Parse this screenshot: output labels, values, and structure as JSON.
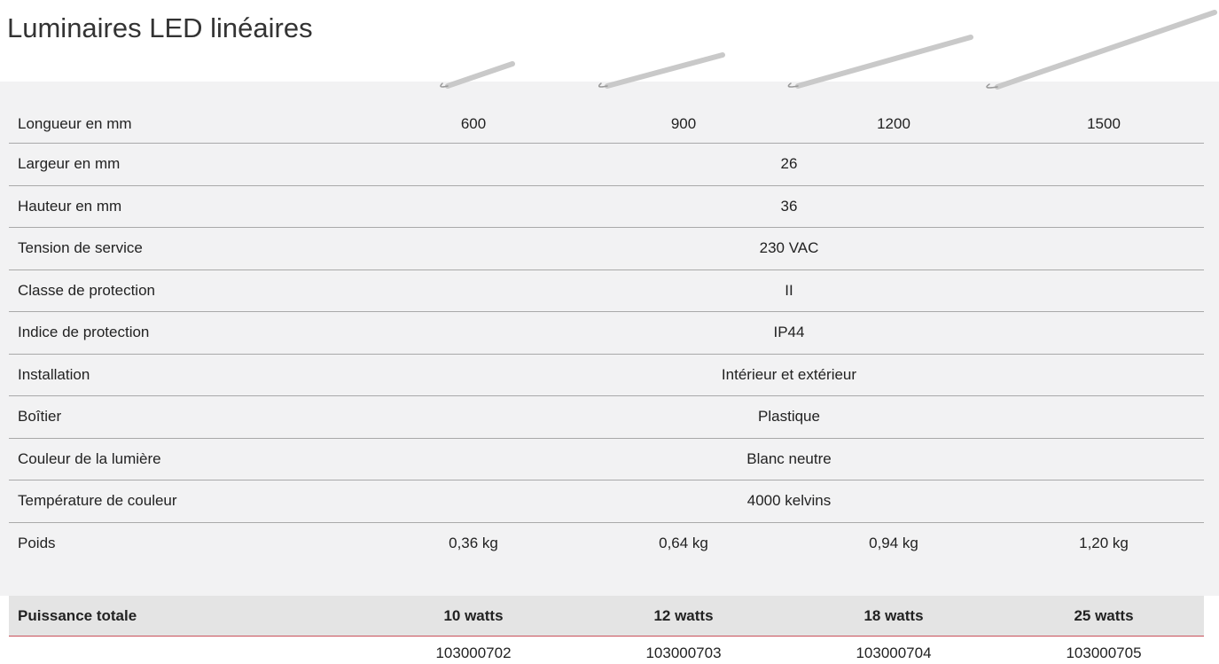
{
  "title": "Luminaires LED linéaires",
  "table": {
    "rows": [
      {
        "label": "Longueur en mm",
        "values": [
          "600",
          "900",
          "1200",
          "1500"
        ]
      },
      {
        "label": "Largeur en mm",
        "values": [
          "26"
        ]
      },
      {
        "label": "Hauteur en mm",
        "values": [
          "36"
        ]
      },
      {
        "label": "Tension de service",
        "values": [
          "230 VAC"
        ]
      },
      {
        "label": "Classe de protection",
        "values": [
          "II"
        ]
      },
      {
        "label": "Indice de protection",
        "values": [
          "IP44"
        ]
      },
      {
        "label": "Installation",
        "values": [
          "Intérieur et extérieur"
        ]
      },
      {
        "label": "Boîtier",
        "values": [
          "Plastique"
        ]
      },
      {
        "label": "Couleur de la lumière",
        "values": [
          "Blanc neutre"
        ]
      },
      {
        "label": "Température de couleur",
        "values": [
          "4000 kelvins"
        ]
      },
      {
        "label": "Poids",
        "values": [
          "0,36 kg",
          "0,64 kg",
          "0,94 kg",
          "1,20 kg"
        ]
      }
    ],
    "power": {
      "label": "Puissance totale",
      "values": [
        "10 watts",
        "12 watts",
        "18 watts",
        "25 watts"
      ]
    },
    "articles": [
      "103000702",
      "103000703",
      "103000704",
      "103000705"
    ]
  }
}
